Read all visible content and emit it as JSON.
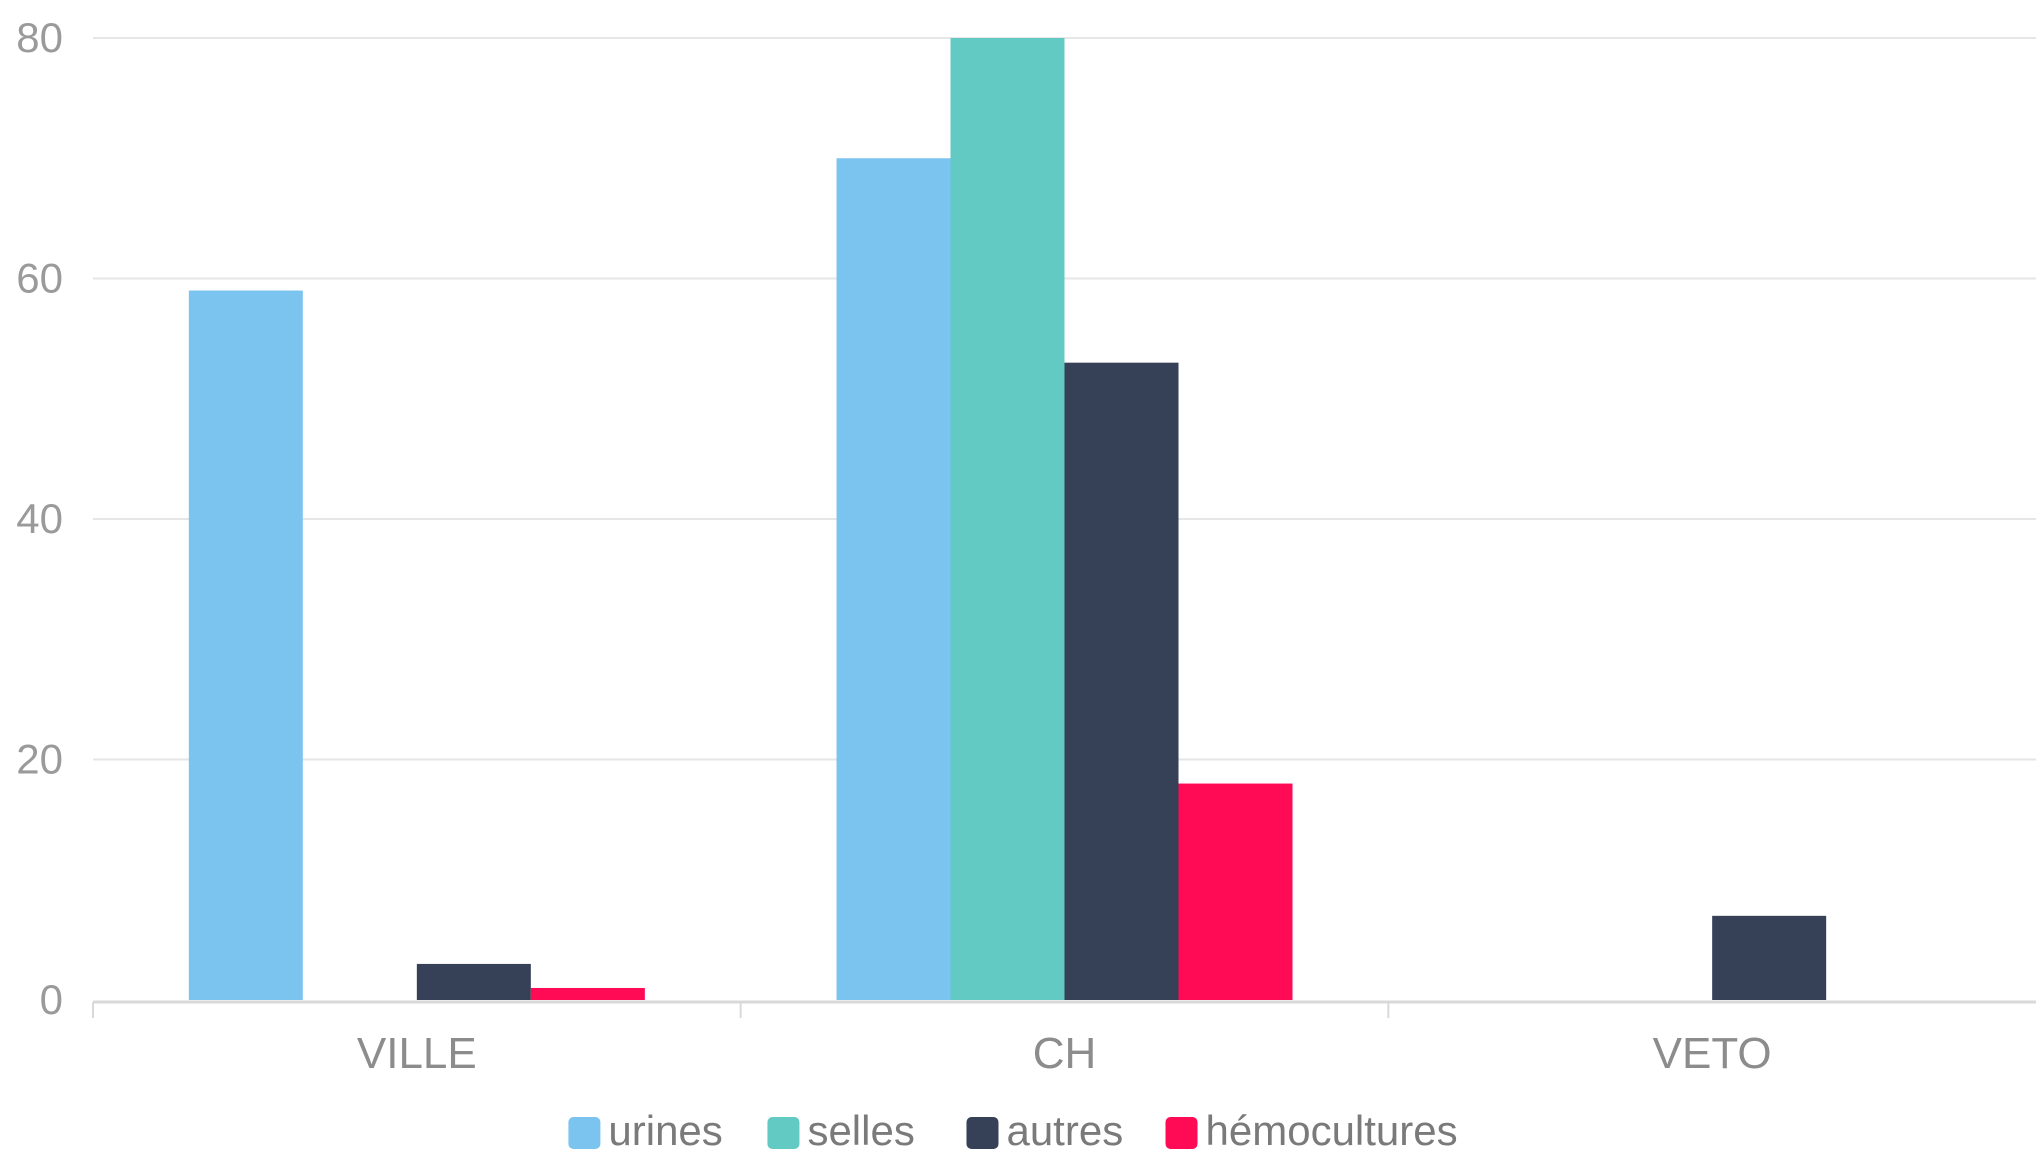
{
  "chart_data": {
    "type": "bar",
    "categories": [
      "VILLE",
      "CH",
      "VETO"
    ],
    "series": [
      {
        "name": "urines",
        "color": "#7cc4f0",
        "values": [
          59,
          70,
          0
        ]
      },
      {
        "name": "selles",
        "color": "#62c9c3",
        "values": [
          0,
          80,
          0
        ]
      },
      {
        "name": "autres",
        "color": "#364157",
        "values": [
          3,
          53,
          7
        ]
      },
      {
        "name": "hémocultures",
        "color": "#ff0a54",
        "values": [
          1,
          18,
          0
        ]
      }
    ],
    "ylim": [
      0,
      80
    ],
    "yticks": [
      "0",
      "20",
      "40",
      "60",
      "80"
    ],
    "grid": true,
    "legend_position": "bottom-center",
    "colors": {
      "grid": "#e6e6e6",
      "axis": "#d9d9d9"
    }
  }
}
